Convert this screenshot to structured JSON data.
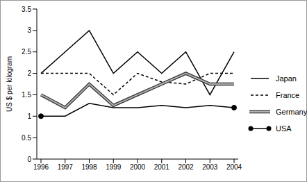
{
  "chart_data": {
    "type": "line",
    "y_label": "US $ per kilogram",
    "categories": [
      "1996",
      "1997",
      "1998",
      "1999",
      "2000",
      "2001",
      "2002",
      "2003",
      "2004"
    ],
    "series": [
      {
        "name": "Japan",
        "color": "#000000",
        "line_style": "solid",
        "values": [
          2,
          2.5,
          3,
          2,
          2.5,
          2,
          2.5,
          1.5,
          2.5
        ]
      },
      {
        "name": "France",
        "color": "#000000",
        "line_style": "dashed",
        "values": [
          2,
          2,
          2,
          1.5,
          2,
          1.8,
          1.75,
          2,
          2
        ]
      },
      {
        "name": "Germany",
        "color": "#b0b0b0",
        "line_style": "double",
        "values": [
          1.5,
          1.2,
          1.75,
          1.25,
          1.5,
          1.75,
          2,
          1.75,
          1.75
        ]
      },
      {
        "name": "USA",
        "color": "#000000",
        "line_style": "solid",
        "marker": "circle",
        "values": [
          1,
          1,
          1.3,
          1.2,
          1.2,
          1.25,
          1.2,
          1.25,
          1.2
        ]
      }
    ],
    "ylim": [
      0,
      3.5
    ],
    "yticks": [
      0,
      0.5,
      1,
      1.5,
      2,
      2.5,
      3,
      3.5
    ],
    "grid": false,
    "legend": "right"
  }
}
